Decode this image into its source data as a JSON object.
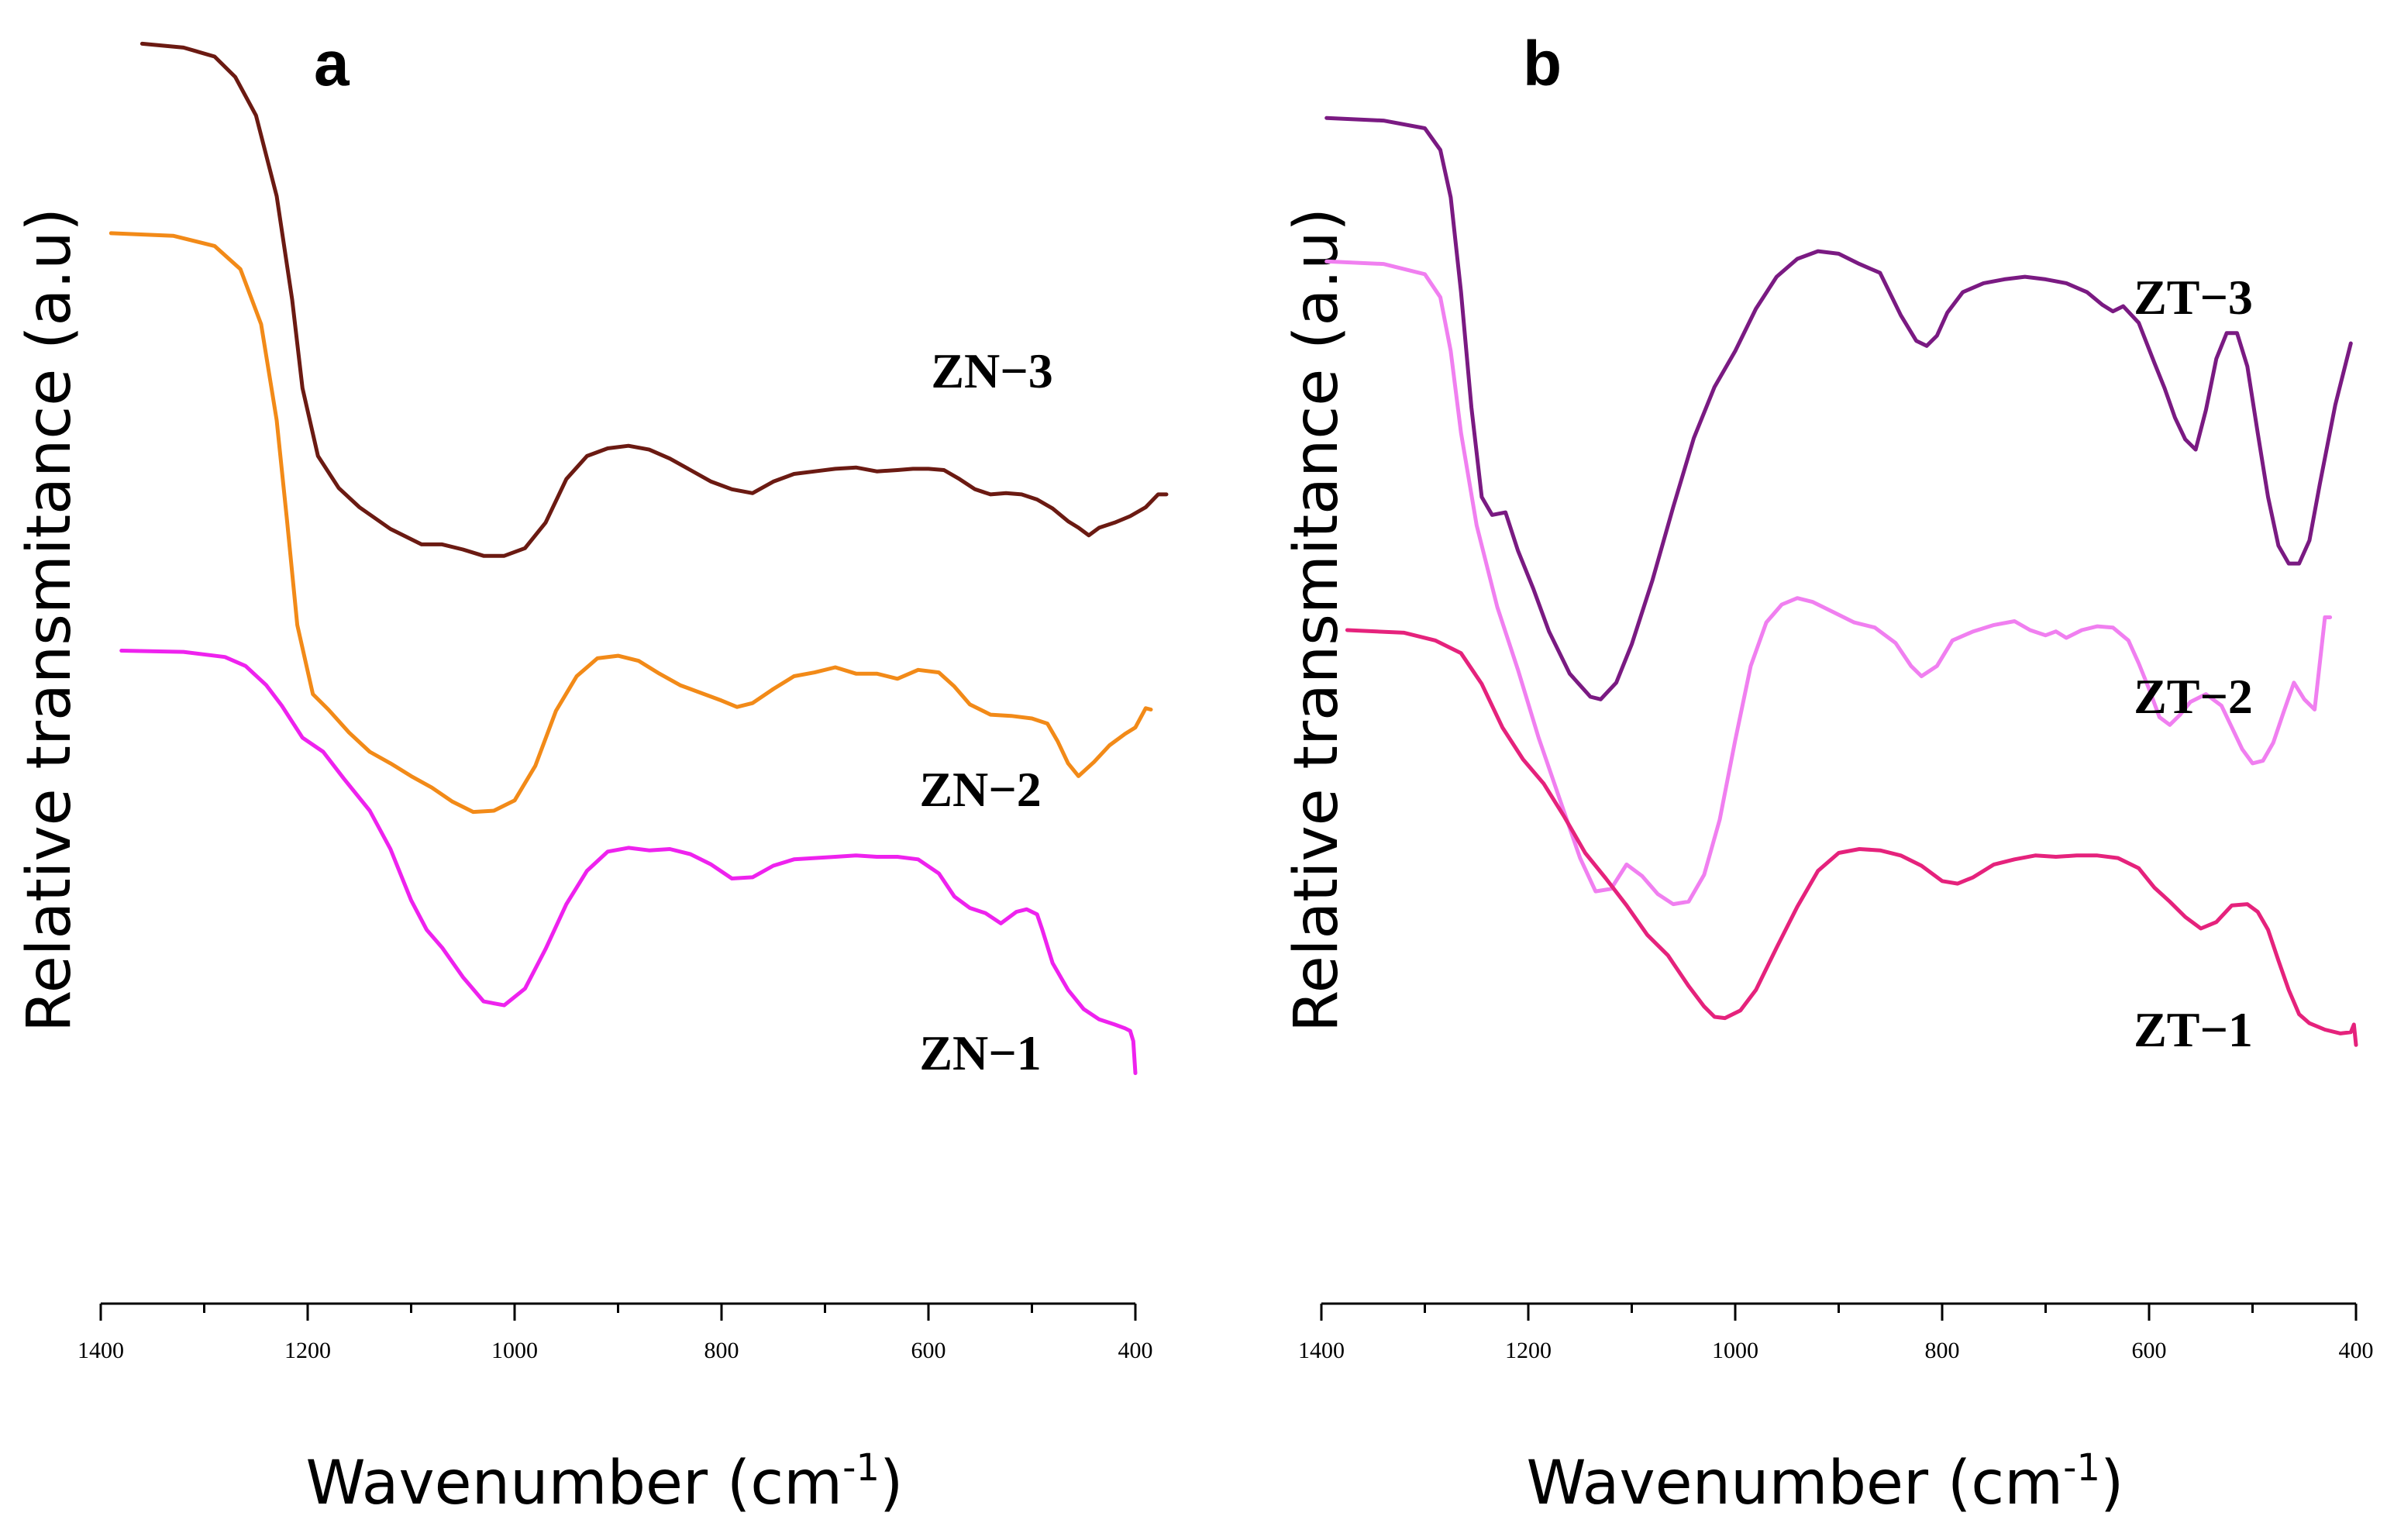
{
  "chart_data": [
    {
      "type": "line",
      "panel": "a",
      "title": "",
      "xlabel": "Wavenumber (cm",
      "xlabel_sup": "-1",
      "xlabel_close": ")",
      "ylabel": "Relative transmitance (a.u)",
      "xlim": [
        1400,
        400
      ],
      "ylim": [
        0,
        100
      ],
      "xticks": [
        1400,
        1200,
        1000,
        800,
        600,
        400
      ],
      "grid": false,
      "series": [
        {
          "name": "ZN−3",
          "color": "#6b1a12",
          "x": [
            1360,
            1320,
            1290,
            1270,
            1250,
            1230,
            1215,
            1205,
            1190,
            1170,
            1150,
            1120,
            1090,
            1070,
            1050,
            1030,
            1010,
            990,
            970,
            950,
            930,
            910,
            890,
            870,
            850,
            830,
            810,
            790,
            770,
            750,
            730,
            710,
            690,
            670,
            650,
            630,
            615,
            600,
            585,
            570,
            555,
            540,
            525,
            510,
            495,
            480,
            465,
            455,
            445,
            435,
            420,
            405,
            390,
            378,
            370
          ],
          "y": [
            98.4,
            98.1,
            97.4,
            95.8,
            92.8,
            86.5,
            78.4,
            71.5,
            66.2,
            63.7,
            62.2,
            60.5,
            59.3,
            59.3,
            58.9,
            58.4,
            58.4,
            59.0,
            61.0,
            64.4,
            66.2,
            66.8,
            67.0,
            66.7,
            66.0,
            65.1,
            64.2,
            63.6,
            63.3,
            64.2,
            64.8,
            65.0,
            65.2,
            65.3,
            65.0,
            65.1,
            65.2,
            65.2,
            65.1,
            64.4,
            63.6,
            63.2,
            63.3,
            63.2,
            62.8,
            62.1,
            61.1,
            60.6,
            60.0,
            60.6,
            61.0,
            61.5,
            62.2,
            63.2,
            63.2
          ]
        },
        {
          "name": "ZN−2",
          "color": "#f28a18",
          "x": [
            1390,
            1330,
            1290,
            1265,
            1245,
            1230,
            1220,
            1210,
            1195,
            1180,
            1160,
            1140,
            1120,
            1100,
            1080,
            1060,
            1040,
            1020,
            1000,
            980,
            960,
            940,
            920,
            900,
            880,
            860,
            840,
            820,
            800,
            785,
            770,
            750,
            730,
            710,
            690,
            670,
            650,
            630,
            610,
            590,
            575,
            560,
            540,
            520,
            500,
            485,
            475,
            465,
            455,
            440,
            425,
            410,
            400,
            390,
            385
          ],
          "y": [
            83.6,
            83.4,
            82.6,
            80.8,
            76.5,
            69.0,
            61.2,
            53.0,
            47.6,
            46.4,
            44.6,
            43.1,
            42.2,
            41.2,
            40.3,
            39.2,
            38.4,
            38.5,
            39.3,
            42.0,
            46.3,
            49.0,
            50.4,
            50.6,
            50.2,
            49.2,
            48.3,
            47.7,
            47.1,
            46.6,
            46.9,
            48.0,
            49.0,
            49.3,
            49.7,
            49.2,
            49.2,
            48.8,
            49.5,
            49.3,
            48.2,
            46.8,
            46.0,
            45.9,
            45.7,
            45.3,
            43.9,
            42.2,
            41.2,
            42.3,
            43.6,
            44.5,
            45.0,
            46.5,
            46.4
          ]
        },
        {
          "name": "ZN−1",
          "color": "#ee22ee",
          "x": [
            1380,
            1320,
            1280,
            1260,
            1240,
            1225,
            1205,
            1185,
            1165,
            1140,
            1120,
            1100,
            1085,
            1070,
            1050,
            1030,
            1010,
            990,
            970,
            950,
            930,
            910,
            890,
            870,
            850,
            830,
            810,
            790,
            770,
            750,
            730,
            710,
            690,
            670,
            650,
            630,
            610,
            590,
            575,
            560,
            545,
            530,
            515,
            505,
            495,
            490,
            480,
            465,
            450,
            435,
            420,
            410,
            405,
            402,
            400
          ],
          "y": [
            51.0,
            50.9,
            50.5,
            49.8,
            48.3,
            46.7,
            44.2,
            43.1,
            41.0,
            38.5,
            35.5,
            31.5,
            29.2,
            27.8,
            25.5,
            23.6,
            23.3,
            24.6,
            27.7,
            31.2,
            33.8,
            35.3,
            35.6,
            35.4,
            35.5,
            35.1,
            34.3,
            33.2,
            33.3,
            34.2,
            34.7,
            34.8,
            34.9,
            35.0,
            34.9,
            34.9,
            34.7,
            33.6,
            31.8,
            30.9,
            30.5,
            29.7,
            30.6,
            30.8,
            30.4,
            29.2,
            26.6,
            24.5,
            23.0,
            22.2,
            21.8,
            21.5,
            21.3,
            20.5,
            18.0
          ]
        }
      ]
    },
    {
      "type": "line",
      "panel": "b",
      "title": "",
      "xlabel": "Wavenumber (cm",
      "xlabel_sup": "-1",
      "xlabel_close": ")",
      "ylabel": "Relative transmitance (a.u)",
      "xlim": [
        1400,
        400
      ],
      "ylim": [
        0,
        100
      ],
      "xticks": [
        1400,
        1200,
        1000,
        800,
        600,
        400
      ],
      "grid": false,
      "series": [
        {
          "name": "ZT−3",
          "color": "#7a1a82",
          "x": [
            1395,
            1340,
            1300,
            1285,
            1275,
            1265,
            1255,
            1245,
            1235,
            1222,
            1210,
            1195,
            1180,
            1160,
            1140,
            1130,
            1115,
            1100,
            1080,
            1060,
            1040,
            1020,
            1000,
            980,
            960,
            940,
            920,
            900,
            880,
            860,
            840,
            825,
            815,
            805,
            795,
            780,
            760,
            740,
            720,
            700,
            680,
            660,
            645,
            635,
            625,
            610,
            595,
            585,
            575,
            565,
            555,
            545,
            535,
            525,
            515,
            505,
            495,
            485,
            475,
            465,
            455,
            445,
            435,
            420,
            405
          ],
          "y": [
            92.6,
            92.4,
            91.8,
            90.1,
            86.4,
            79.0,
            70.0,
            63.0,
            61.6,
            61.8,
            58.8,
            55.8,
            52.5,
            49.2,
            47.4,
            47.2,
            48.5,
            51.5,
            56.5,
            62.2,
            67.6,
            71.6,
            74.4,
            77.7,
            80.2,
            81.6,
            82.2,
            82.0,
            81.2,
            80.5,
            77.2,
            75.2,
            74.8,
            75.6,
            77.4,
            79.0,
            79.7,
            80.0,
            80.2,
            80.0,
            79.7,
            79.0,
            78.0,
            77.5,
            77.9,
            76.6,
            73.5,
            71.5,
            69.2,
            67.5,
            66.7,
            69.8,
            73.8,
            75.8,
            75.8,
            73.2,
            68.0,
            63.0,
            59.2,
            57.8,
            57.8,
            59.6,
            64.0,
            70.2,
            75.0
          ]
        },
        {
          "name": "ZT−2",
          "color": "#f07ff0",
          "x": [
            1395,
            1340,
            1300,
            1285,
            1275,
            1265,
            1250,
            1230,
            1210,
            1190,
            1170,
            1150,
            1135,
            1120,
            1105,
            1090,
            1075,
            1060,
            1045,
            1030,
            1015,
            1000,
            985,
            970,
            955,
            940,
            925,
            905,
            885,
            865,
            845,
            830,
            820,
            805,
            790,
            770,
            750,
            730,
            715,
            700,
            690,
            680,
            665,
            650,
            635,
            620,
            610,
            600,
            590,
            580,
            570,
            560,
            545,
            530,
            520,
            510,
            500,
            490,
            480,
            470,
            460,
            450,
            440,
            430,
            425
          ],
          "y": [
            81.4,
            81.2,
            80.4,
            78.6,
            74.4,
            68.0,
            60.8,
            54.4,
            49.5,
            44.2,
            39.5,
            34.8,
            32.2,
            32.4,
            34.3,
            33.4,
            32.0,
            31.2,
            31.4,
            33.5,
            37.8,
            44.0,
            49.8,
            53.2,
            54.6,
            55.1,
            54.8,
            54.0,
            53.2,
            52.8,
            51.6,
            49.8,
            49.0,
            49.8,
            51.8,
            52.5,
            53.0,
            53.3,
            52.6,
            52.2,
            52.5,
            52.0,
            52.6,
            52.9,
            52.8,
            51.8,
            50.0,
            48.0,
            45.8,
            45.2,
            46.0,
            47.0,
            47.6,
            46.7,
            45.0,
            43.3,
            42.2,
            42.4,
            43.8,
            46.2,
            48.5,
            47.2,
            46.4,
            53.6,
            53.6
          ]
        },
        {
          "name": "ZT−1",
          "color": "#e5227c",
          "x": [
            1375,
            1320,
            1290,
            1265,
            1245,
            1225,
            1205,
            1185,
            1165,
            1145,
            1125,
            1105,
            1085,
            1065,
            1045,
            1030,
            1020,
            1010,
            995,
            980,
            960,
            940,
            920,
            900,
            880,
            860,
            840,
            820,
            800,
            785,
            770,
            750,
            730,
            710,
            690,
            670,
            650,
            630,
            610,
            595,
            580,
            565,
            550,
            535,
            520,
            505,
            495,
            485,
            475,
            465,
            455,
            445,
            430,
            415,
            405,
            402,
            400
          ],
          "y": [
            52.6,
            52.4,
            51.8,
            50.8,
            48.4,
            45.0,
            42.5,
            40.6,
            38.0,
            35.2,
            33.2,
            31.1,
            28.8,
            27.2,
            24.8,
            23.2,
            22.4,
            22.3,
            22.9,
            24.5,
            27.8,
            31.0,
            33.8,
            35.2,
            35.5,
            35.4,
            35.0,
            34.2,
            33.0,
            32.8,
            33.3,
            34.3,
            34.7,
            35.0,
            34.9,
            35.0,
            35.0,
            34.8,
            34.0,
            32.5,
            31.4,
            30.2,
            29.3,
            29.8,
            31.1,
            31.2,
            30.6,
            29.2,
            26.8,
            24.5,
            22.6,
            21.9,
            21.4,
            21.1,
            21.2,
            21.8,
            20.2
          ]
        }
      ]
    }
  ]
}
